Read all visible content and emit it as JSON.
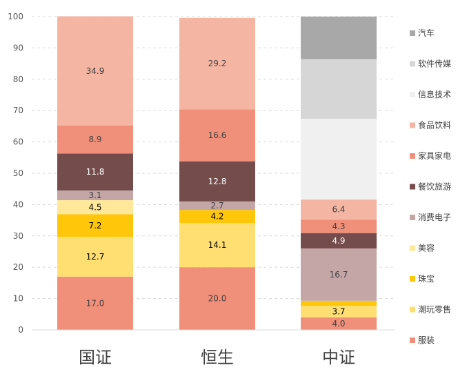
{
  "chart_data": {
    "type": "bar",
    "stacked": true,
    "categories": [
      "国证",
      "恒生",
      "中证"
    ],
    "ylim": [
      0,
      100
    ],
    "yticks": [
      0,
      10,
      20,
      30,
      40,
      50,
      60,
      70,
      80,
      90,
      100
    ],
    "grid": true,
    "legend_position": "right",
    "series": [
      {
        "name": "服装",
        "color": "#F0907A",
        "label_color": "#404040",
        "values": [
          17.0,
          20.0,
          4.0
        ],
        "labels": [
          "17.0",
          "20.0",
          "4.0"
        ]
      },
      {
        "name": "潮玩零售",
        "color": "#FFDF72",
        "label_color": "#000000",
        "values": [
          12.7,
          14.1,
          3.7
        ],
        "labels": [
          "12.7",
          "14.1",
          "3.7"
        ]
      },
      {
        "name": "珠宝",
        "color": "#FFC60A",
        "label_color": "#000000",
        "values": [
          7.2,
          4.2,
          1.6
        ],
        "labels": [
          "7.2",
          "4.2",
          ""
        ]
      },
      {
        "name": "美容",
        "color": "#FFE89A",
        "label_color": "#000000",
        "values": [
          4.5,
          0,
          0
        ],
        "labels": [
          "4.5",
          "",
          ""
        ]
      },
      {
        "name": "消费电子",
        "color": "#C5A6A7",
        "label_color": "#404040",
        "values": [
          3.1,
          2.7,
          16.7
        ],
        "labels": [
          "3.1",
          "2.7",
          "16.7"
        ]
      },
      {
        "name": "餐饮旅游",
        "color": "#744C4C",
        "label_color": "#ffffff",
        "values": [
          11.8,
          12.8,
          4.9
        ],
        "labels": [
          "11.8",
          "12.8",
          "4.9"
        ]
      },
      {
        "name": "家具家电",
        "color": "#F0907A",
        "label_color": "#404040",
        "values": [
          8.9,
          16.6,
          4.3
        ],
        "labels": [
          "8.9",
          "16.6",
          "4.3"
        ]
      },
      {
        "name": "食品饮料",
        "color": "#F5B5A3",
        "label_color": "#404040",
        "values": [
          34.9,
          29.2,
          6.4
        ],
        "labels": [
          "34.9",
          "29.2",
          "6.4"
        ]
      },
      {
        "name": "信息技术",
        "color": "#F0F0F0",
        "label_color": "#404040",
        "values": [
          0,
          0,
          25.8
        ],
        "labels": [
          "",
          "",
          ""
        ]
      },
      {
        "name": "软件传媒",
        "color": "#D6D6D6",
        "label_color": "#404040",
        "values": [
          0,
          0,
          19.0
        ],
        "labels": [
          "",
          "",
          ""
        ]
      },
      {
        "name": "汽车",
        "color": "#A8A8A8",
        "label_color": "#404040",
        "values": [
          0,
          0,
          13.6
        ],
        "labels": [
          "",
          "",
          ""
        ]
      }
    ]
  }
}
